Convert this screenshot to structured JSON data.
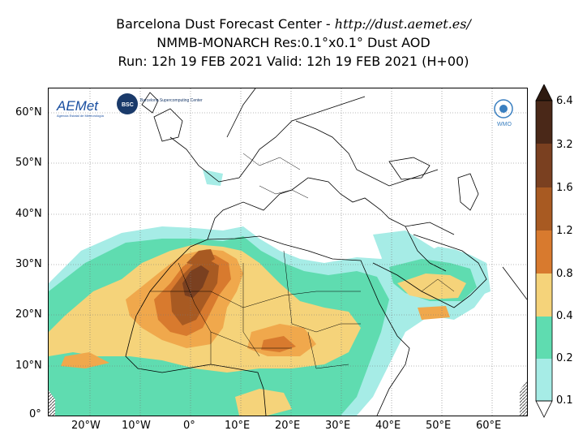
{
  "title": {
    "line1_prefix": "Barcelona Dust Forecast Center - ",
    "line1_url": "http://dust.aemet.es/",
    "line2": "NMMB-MONARCH   Res:0.1°x0.1°   Dust AOD",
    "line3": "Run: 12h 19 FEB 2021   Valid: 12h 19 FEB 2021 (H+00)"
  },
  "logos": {
    "aemet": "AEMet",
    "aemet_sub": "Agencia Estatal de Meteorología",
    "bsc": "BSC",
    "bsc_name": "Barcelona Supercomputing Center",
    "wmo": "WMO"
  },
  "map": {
    "lat_labels": [
      "60°N",
      "50°N",
      "40°N",
      "30°N",
      "20°N",
      "10°N",
      "0°"
    ],
    "lon_labels": [
      "20°W",
      "10°W",
      "0°",
      "10°E",
      "20°E",
      "30°E",
      "40°E",
      "50°E",
      "60°E"
    ]
  },
  "colorbar": {
    "levels": [
      "0.1",
      "0.2",
      "0.4",
      "0.8",
      "1.2",
      "1.6",
      "3.2",
      "6.4"
    ],
    "colors": [
      "#a6ece6",
      "#5fdcb0",
      "#f5d37a",
      "#f0a84c",
      "#d87a2e",
      "#a85a22",
      "#7a4020",
      "#4a2818"
    ],
    "extend_max_color": "#2e1a10"
  }
}
